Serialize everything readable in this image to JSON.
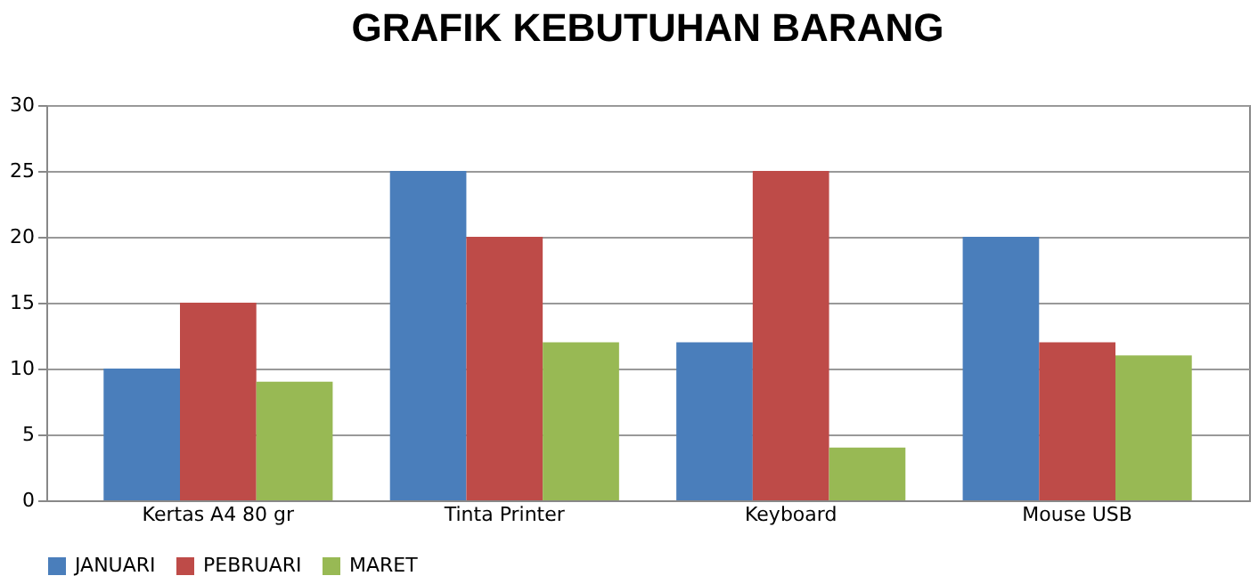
{
  "chart_data": {
    "type": "bar",
    "title": "GRAFIK KEBUTUHAN BARANG",
    "categories": [
      "Kertas A4 80 gr",
      "Tinta Printer",
      "Keyboard",
      "Mouse USB"
    ],
    "series": [
      {
        "name": "JANUARI",
        "color": "#4a7ebb",
        "values": [
          10,
          25,
          12,
          20
        ]
      },
      {
        "name": "PEBRUARI",
        "color": "#be4b48",
        "values": [
          15,
          20,
          25,
          12
        ]
      },
      {
        "name": "MARET",
        "color": "#98b954",
        "values": [
          9,
          12,
          4,
          11
        ]
      }
    ],
    "ylim": [
      0,
      30
    ],
    "yticks": [
      0,
      5,
      10,
      15,
      20,
      25,
      30
    ],
    "grid": "y",
    "legend": "bottom"
  }
}
